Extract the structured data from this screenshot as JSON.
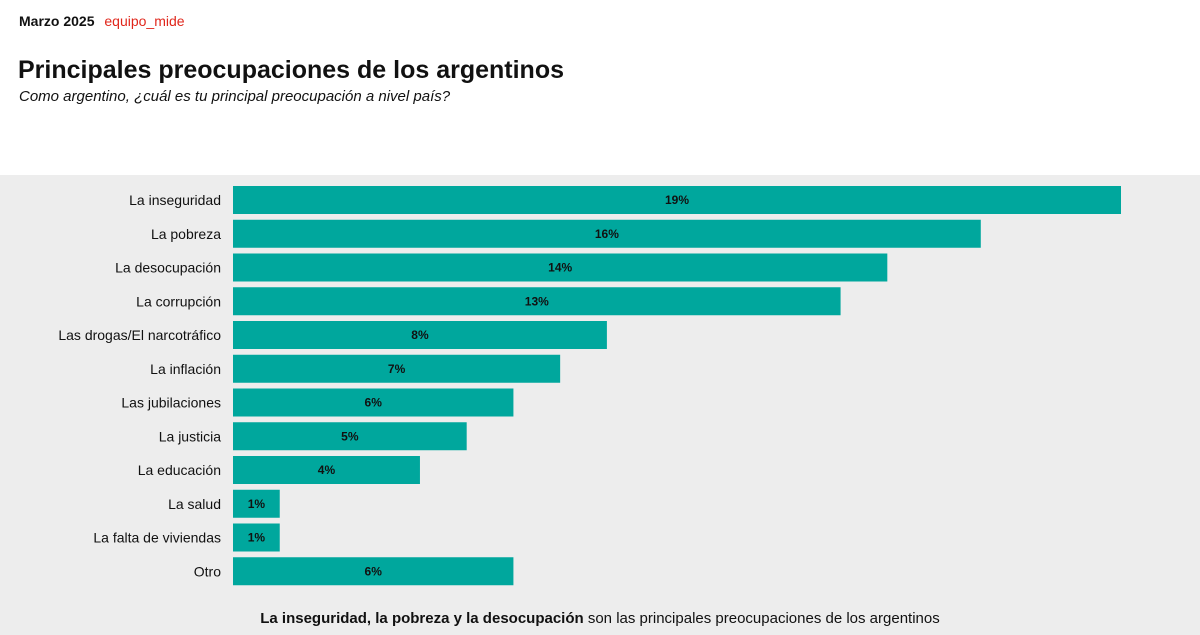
{
  "header": {
    "date": "Marzo 2025",
    "brand": "equipo_mide"
  },
  "chart_data": {
    "type": "bar",
    "orientation": "horizontal",
    "title": "Principales preocupaciones de los argentinos",
    "subtitle": "Como argentino, ¿cuál es tu principal preocupación a nivel país?",
    "categories": [
      "La inseguridad",
      "La pobreza",
      "La desocupación",
      "La corrupción",
      "Las drogas/El narcotráfico",
      "La inflación",
      "Las jubilaciones",
      "La justicia",
      "La educación",
      "La salud",
      "La falta de viviendas",
      "Otro"
    ],
    "values": [
      19,
      16,
      14,
      13,
      8,
      7,
      6,
      5,
      4,
      1,
      1,
      6
    ],
    "data_labels": [
      "19%",
      "16%",
      "14%",
      "13%",
      "8%",
      "7%",
      "6%",
      "5%",
      "4%",
      "1%",
      "1%",
      "6%"
    ],
    "unit": "%",
    "bar_color": "#00a79d",
    "background_color": "#ededed",
    "grid": false,
    "xlim": [
      0,
      19
    ]
  },
  "footer": {
    "bold": "La inseguridad, la pobreza y la desocupación",
    "rest": " son las principales preocupaciones de los argentinos"
  }
}
